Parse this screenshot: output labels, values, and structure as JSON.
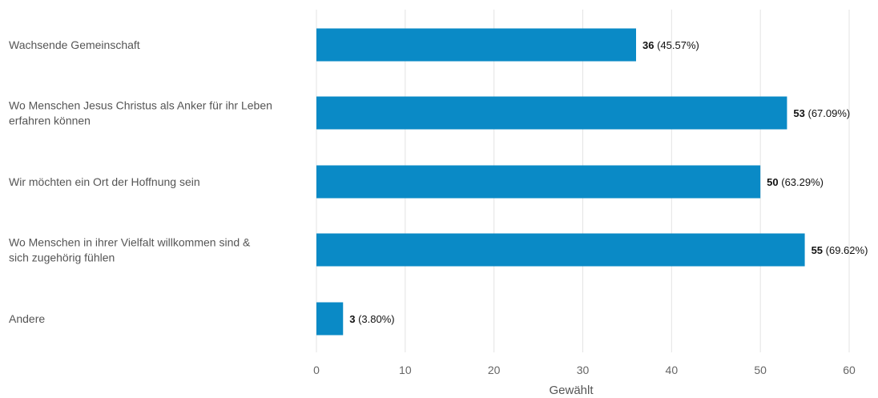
{
  "chart_data": {
    "type": "bar",
    "orientation": "horizontal",
    "categories": [
      [
        "Wachsende Gemeinschaft"
      ],
      [
        "Wo Menschen Jesus Christus als Anker für ihr Leben",
        "erfahren können"
      ],
      [
        "Wir möchten ein Ort der Hoffnung sein"
      ],
      [
        "Wo Menschen in ihrer Vielfalt willkommen sind &",
        "sich zugehörig fühlen"
      ],
      [
        "Andere"
      ]
    ],
    "values": [
      36,
      53,
      50,
      55,
      3
    ],
    "percent_labels": [
      "(45.57%)",
      "(67.09%)",
      "(63.29%)",
      "(69.62%)",
      "(3.80%)"
    ],
    "xlabel": "Gewählt",
    "xlim": [
      0,
      60
    ],
    "xticks": [
      0,
      10,
      20,
      30,
      40,
      50,
      60
    ],
    "grid": true,
    "bar_color": "#0a8ac6"
  }
}
